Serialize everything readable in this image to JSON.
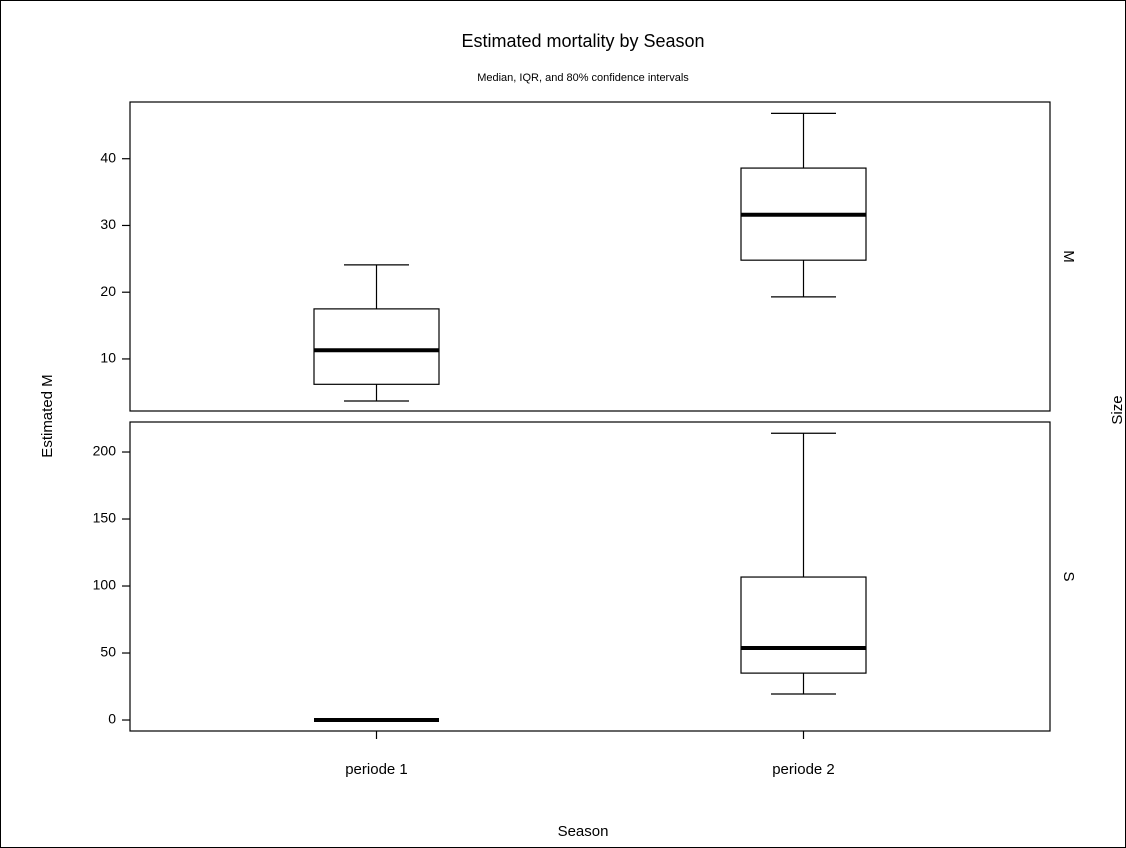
{
  "chart_data": {
    "type": "box",
    "title": "Estimated mortality by Season",
    "subtitle": "Median, IQR, and 80% confidence intervals",
    "x_label": "Season",
    "y_label": "Estimated M",
    "facet_label": "Size",
    "categories": [
      "periode 1",
      "periode 2"
    ],
    "color": "#000000",
    "panels": [
      {
        "label": "M",
        "ylim": [
          2.2,
          48.5
        ],
        "yticks": [
          10,
          20,
          30,
          40
        ],
        "boxes": [
          {
            "whisker_low": 3.7,
            "q1": 6.2,
            "median": 11.3,
            "q3": 17.5,
            "whisker_high": 24.1
          },
          {
            "whisker_low": 19.3,
            "q1": 24.8,
            "median": 31.6,
            "q3": 38.6,
            "whisker_high": 46.8
          }
        ]
      },
      {
        "label": "S",
        "ylim": [
          -8.2,
          222.4
        ],
        "yticks": [
          0,
          50,
          100,
          150,
          200
        ],
        "boxes": [
          {
            "whisker_low": 0,
            "q1": 0,
            "median": 0,
            "q3": 0,
            "whisker_high": 0
          },
          {
            "whisker_low": 19.4,
            "q1": 35,
            "median": 53.7,
            "q3": 106.7,
            "whisker_high": 214
          }
        ]
      }
    ]
  }
}
